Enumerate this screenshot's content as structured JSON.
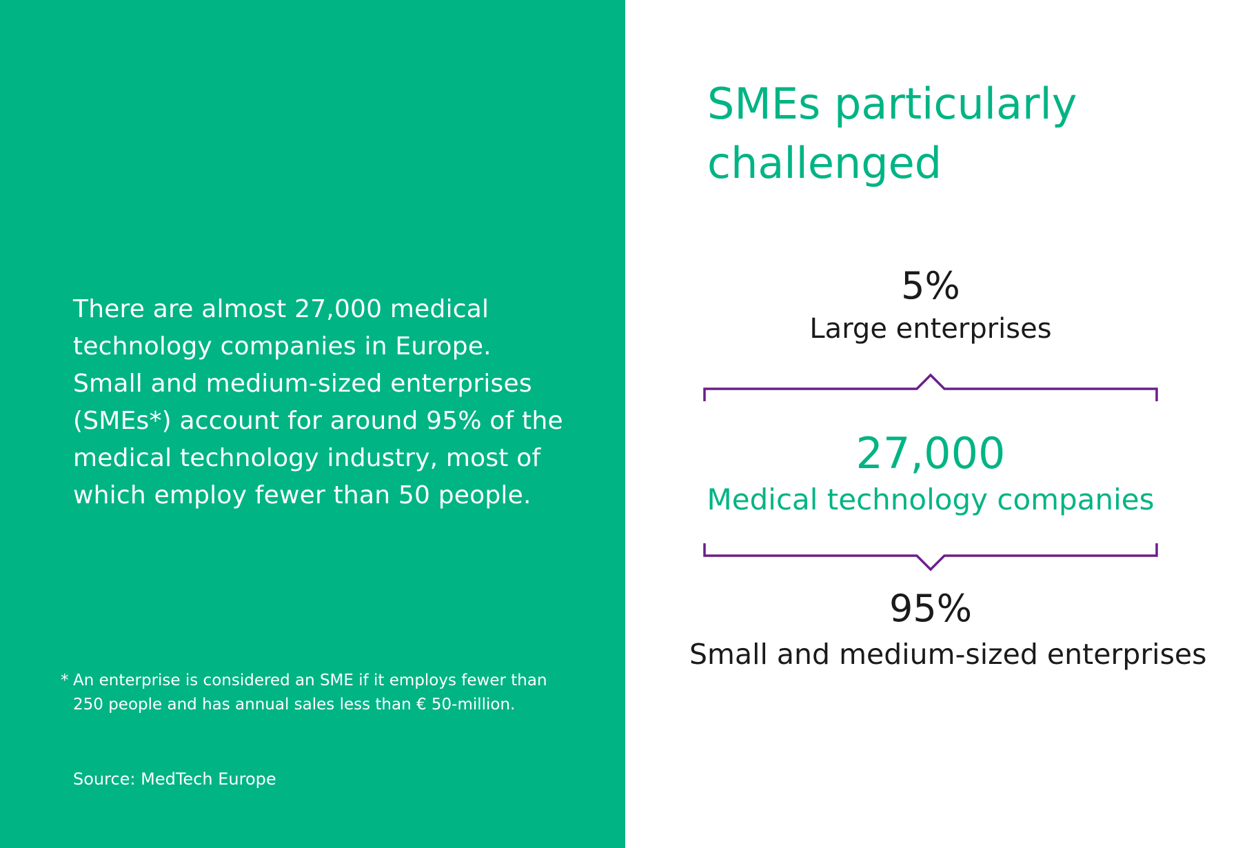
{
  "left": {
    "intro_lines": [
      "There are almost 27,000 medical",
      "technology companies in Europe.",
      "Small and medium-sized enterprises",
      "(SMEs*) account for around 95% of the",
      "medical technology industry, most of",
      "which employ fewer than 50 people."
    ],
    "footnote": {
      "marker": "*",
      "line1": "An enterprise is considered an SME if it employs fewer than",
      "line2": "250 people and has annual sales less than € 50-million."
    },
    "source": "Source: MedTech Europe"
  },
  "right": {
    "title_lines": [
      "SMEs particularly",
      "challenged"
    ],
    "large": {
      "value": "5%",
      "label": "Large enterprises"
    },
    "total": {
      "value": "27,000",
      "label": "Medical technology companies"
    },
    "sme": {
      "value": "95%",
      "label": "Small and medium-sized enterprises"
    }
  },
  "colors": {
    "green": "#00b484",
    "purple": "#6a1f8a",
    "text_dark": "#1a1a1a",
    "white": "#ffffff"
  }
}
